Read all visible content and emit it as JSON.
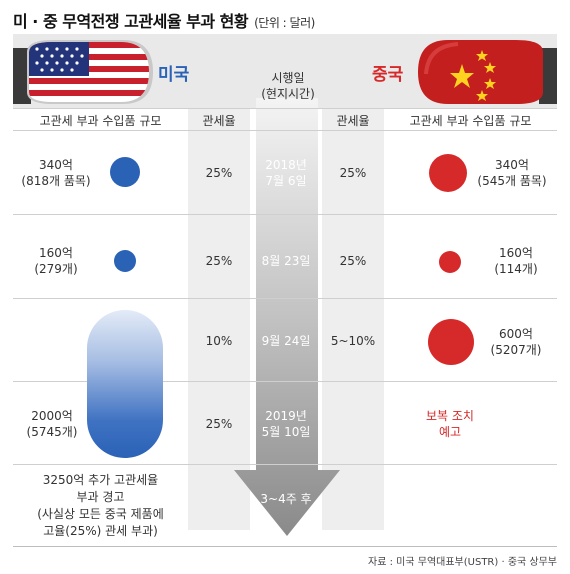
{
  "title": "미 · 중 무역전쟁 고관세율 부과 현황",
  "unit": "(단위 : 달러)",
  "us_label": "미국",
  "cn_label": "중국",
  "effective_date": [
    "시행일",
    "(현지시간)"
  ],
  "headers": {
    "us_scale": "고관세 부과 수입품 규모",
    "us_rate": "관세율",
    "cn_rate": "관세율",
    "cn_scale": "고관세 부과 수입품 규모"
  },
  "rows": [
    {
      "us_amount": [
        "340억",
        "(818개 품목)"
      ],
      "us_rate": "25%",
      "date": [
        "2018년",
        "7월 6일"
      ],
      "cn_rate": "25%",
      "cn_amount": [
        "340억",
        "(545개 품목)"
      ]
    },
    {
      "us_amount": [
        "160억",
        "(279개)"
      ],
      "us_rate": "25%",
      "date": [
        "8월 23일"
      ],
      "cn_rate": "25%",
      "cn_amount": [
        "160억",
        "(114개)"
      ]
    },
    {
      "us_amount": [],
      "us_rate": "10%",
      "date": [
        "9월 24일"
      ],
      "cn_rate": "5~10%",
      "cn_amount": [
        "600억",
        "(5207개)"
      ]
    },
    {
      "us_amount": [
        "2000억",
        "(5745개)"
      ],
      "us_rate": "25%",
      "date": [
        "2019년",
        "5월 10일"
      ],
      "cn_rate": "",
      "cn_amount": [
        "보복 조치",
        "예고"
      ]
    }
  ],
  "arrow_label": "3~4주 후",
  "warning": [
    "3250억 추가 고관세율",
    "부과 경고",
    "(사실상 모든 중국 제품에",
    "고율(25%) 관세 부과)"
  ],
  "source": "자료 : 미국 무역대표부(USTR) · 중국 상무부",
  "colors": {
    "us": "#2a62b6",
    "cn": "#d62a2a",
    "band": "#eeeeef"
  }
}
